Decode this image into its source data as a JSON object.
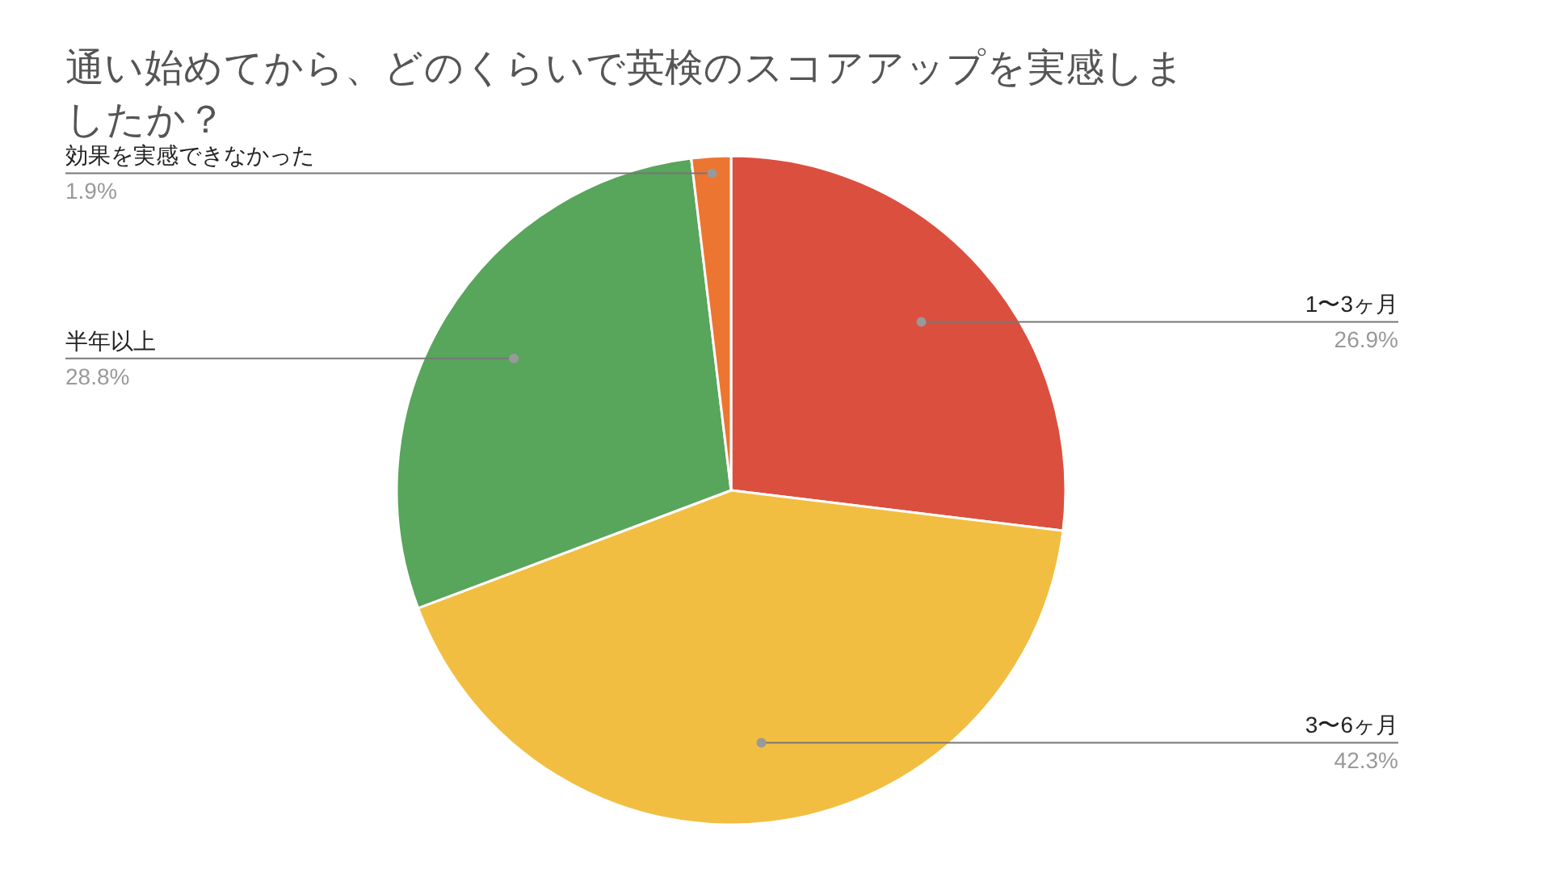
{
  "chart_data": {
    "type": "pie",
    "title": "通い始めてから、どのくらいで英検のスコアアップを実感しましたか？",
    "categories": [
      "1〜3ヶ月",
      "3〜6ヶ月",
      "半年以上",
      "効果を実感できなかった"
    ],
    "values": [
      26.9,
      42.3,
      28.8,
      1.9
    ],
    "colors": [
      "#db4f3f",
      "#f2be42",
      "#58a55c",
      "#ec7532"
    ],
    "value_labels": [
      "26.9%",
      "42.3%",
      "28.8%",
      "1.9%"
    ]
  }
}
